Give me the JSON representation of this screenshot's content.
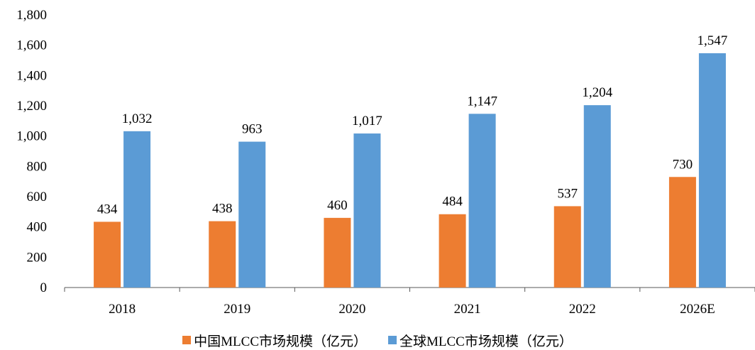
{
  "chart_data": {
    "type": "bar",
    "categories": [
      "2018",
      "2019",
      "2020",
      "2021",
      "2022",
      "2026E"
    ],
    "series": [
      {
        "name": "中国MLCC市场规模（亿元）",
        "values": [
          434,
          438,
          460,
          484,
          537,
          730
        ],
        "color": "#ED7D31"
      },
      {
        "name": "全球MLCC市场规模（亿元）",
        "values": [
          1032,
          963,
          1017,
          1147,
          1204,
          1547
        ],
        "color": "#5B9BD5"
      }
    ],
    "ylim": [
      0,
      1800
    ],
    "yticks": [
      0,
      200,
      400,
      600,
      800,
      1000,
      1200,
      1400,
      1600,
      1800
    ],
    "ytick_labels": [
      "0",
      "200",
      "400",
      "600",
      "800",
      "1,000",
      "1,200",
      "1,400",
      "1,600",
      "1,800"
    ],
    "data_labels": [
      [
        "434",
        "438",
        "460",
        "484",
        "537",
        "730"
      ],
      [
        "1,032",
        "963",
        "1,017",
        "1,147",
        "1,204",
        "1,547"
      ]
    ],
    "grid": false,
    "legend_position": "bottom"
  }
}
